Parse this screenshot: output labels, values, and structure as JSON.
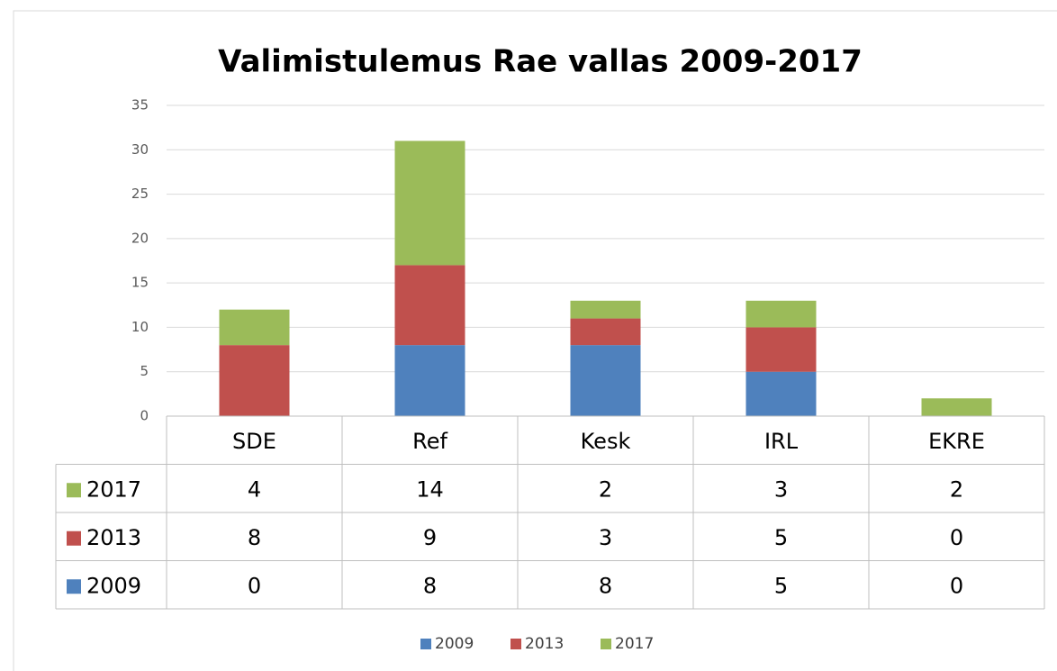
{
  "chart_data": {
    "type": "bar",
    "stacked": true,
    "title": "Valimistulemus Rae vallas 2009-2017",
    "categories": [
      "SDE",
      "Ref",
      "Kesk",
      "IRL",
      "EKRE"
    ],
    "series": [
      {
        "name": "2009",
        "color": "#4f81bd",
        "values": [
          0,
          8,
          8,
          5,
          0
        ]
      },
      {
        "name": "2013",
        "color": "#c0504d",
        "values": [
          8,
          9,
          3,
          5,
          0
        ]
      },
      {
        "name": "2017",
        "color": "#9bbb59",
        "values": [
          4,
          14,
          2,
          3,
          2
        ]
      }
    ],
    "ylim": [
      0,
      35
    ],
    "yticks": [
      0,
      5,
      10,
      15,
      20,
      25,
      30,
      35
    ],
    "grid": true,
    "legend": "bottom",
    "data_table": true
  }
}
